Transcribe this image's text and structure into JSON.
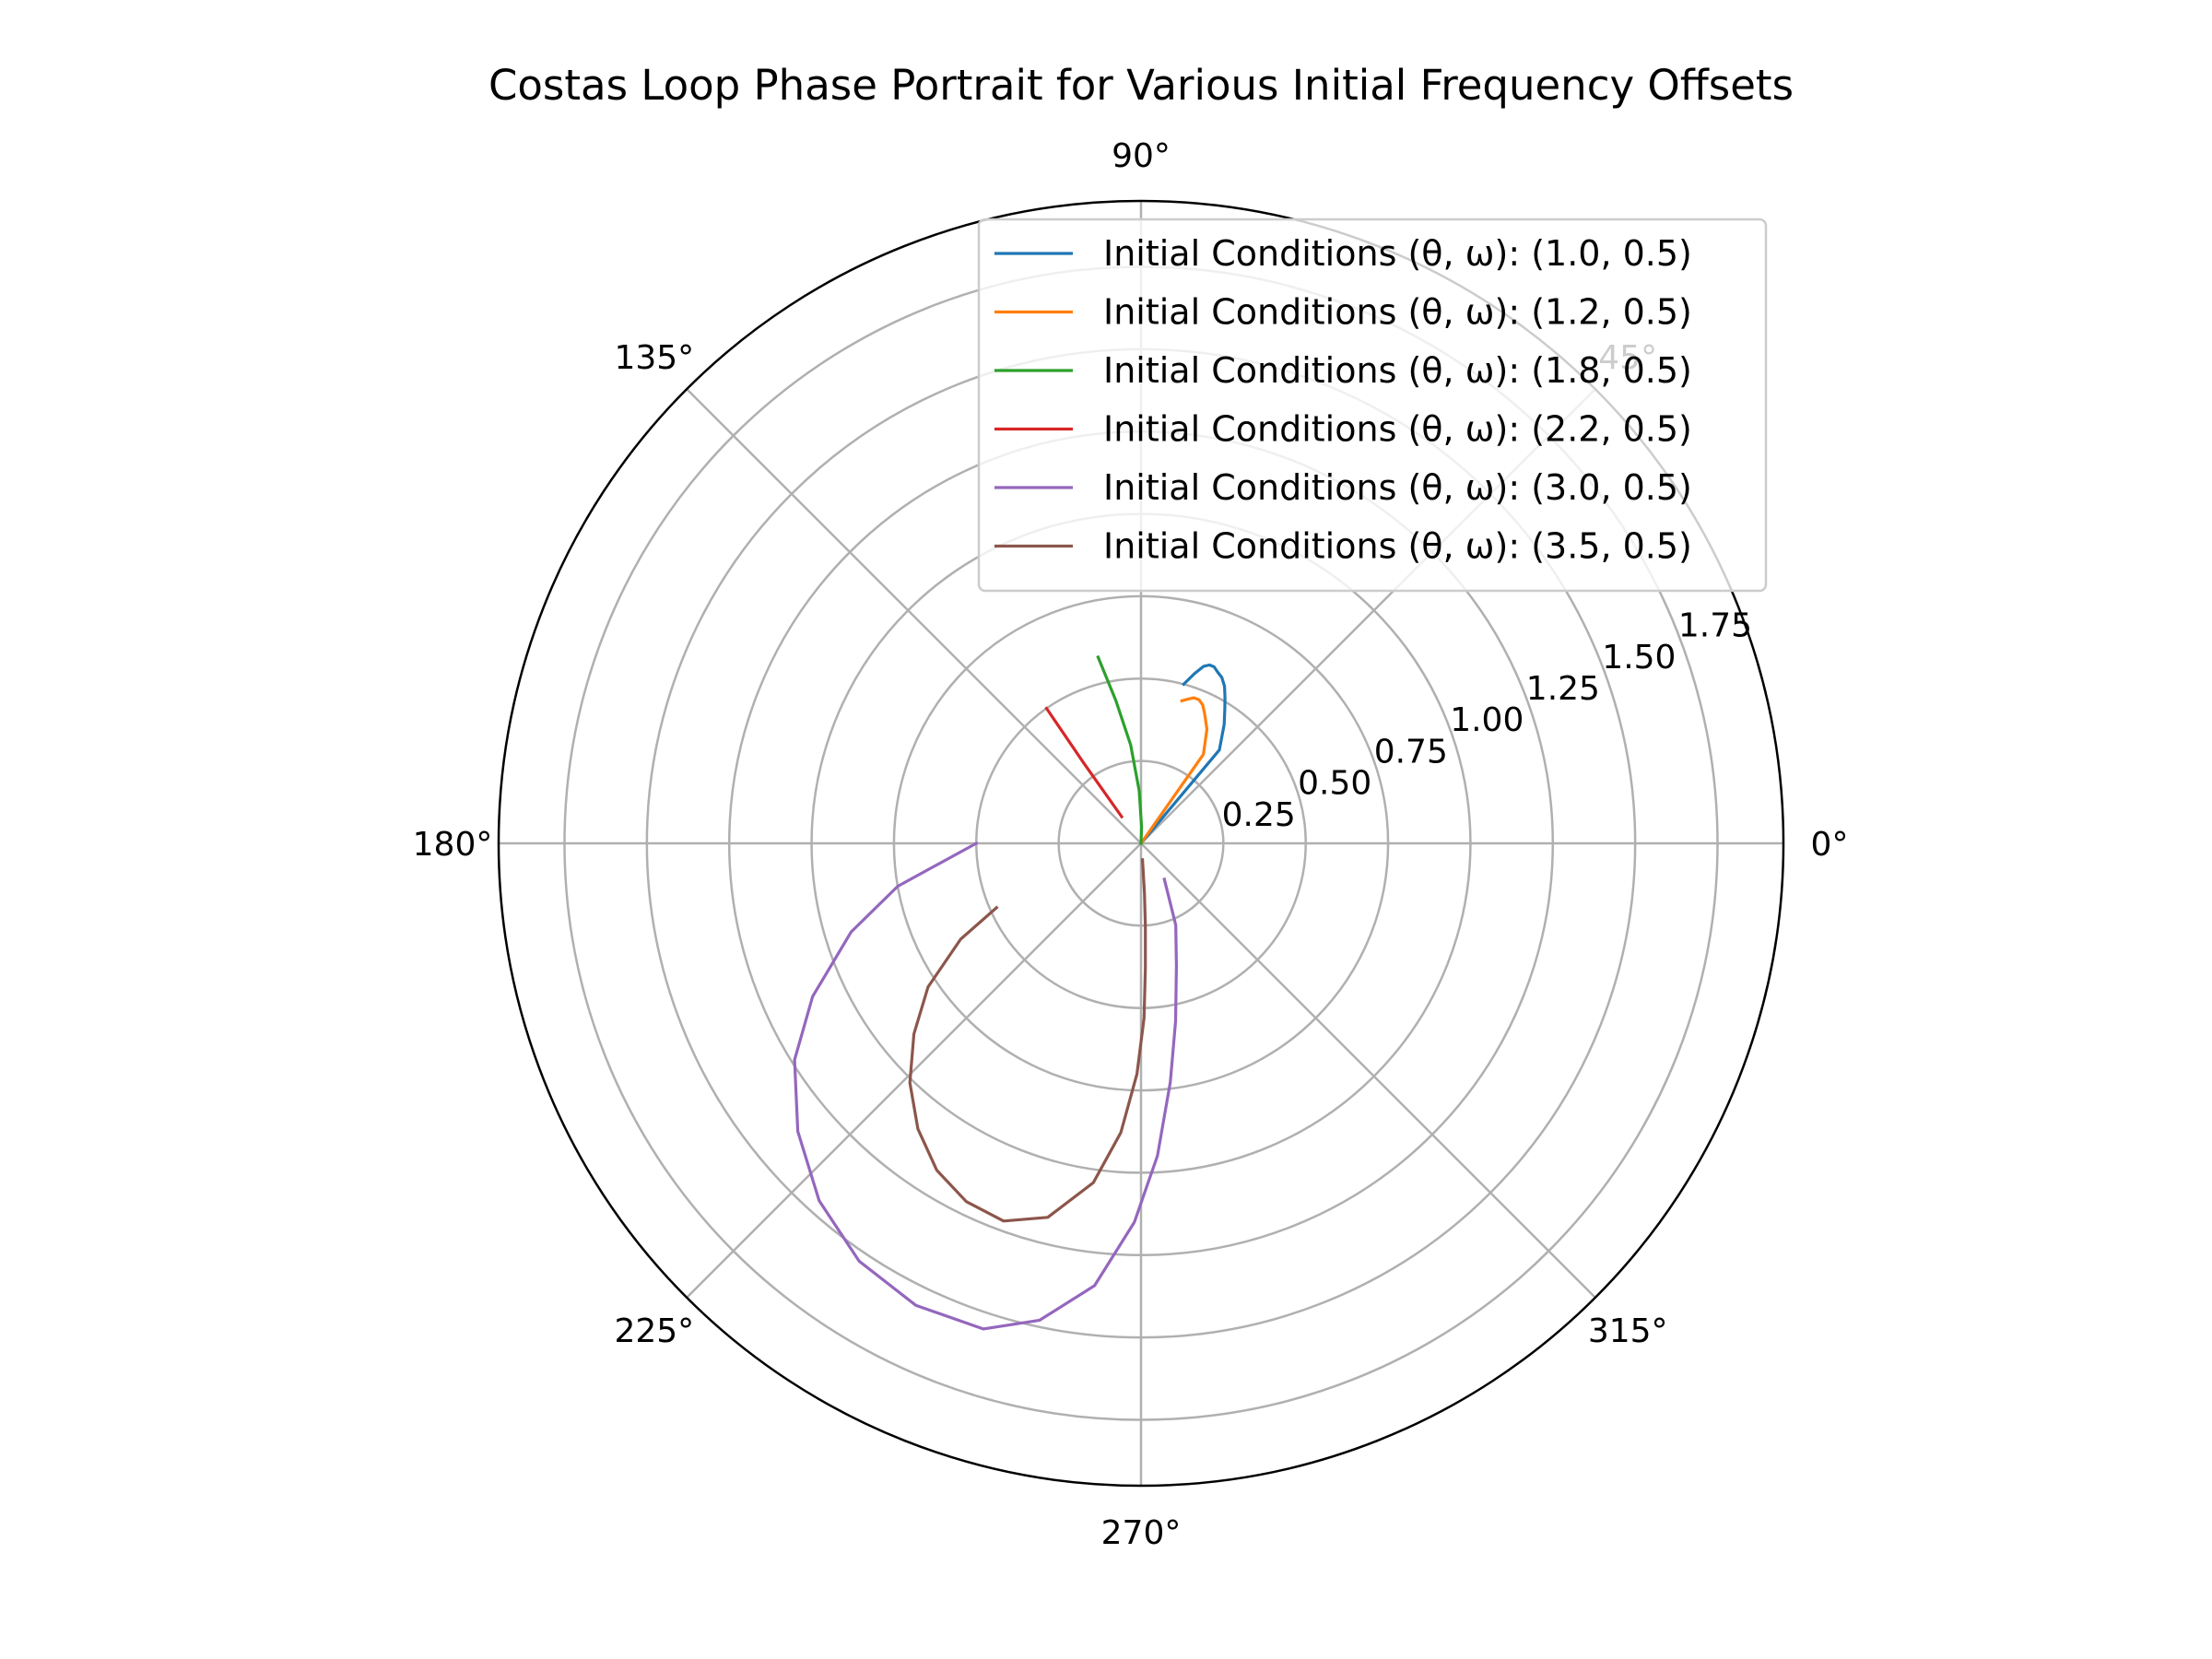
{
  "chart_data": {
    "type": "line",
    "projection": "polar",
    "title": "Costas Loop Phase Portrait for Various Initial Frequency Offsets",
    "angle_ticks": [
      "0°",
      "45°",
      "90°",
      "135°",
      "180°",
      "225°",
      "270°",
      "315°"
    ],
    "angle_tick_values_deg": [
      0,
      45,
      90,
      135,
      180,
      225,
      270,
      315
    ],
    "radial_ticks": [
      "0.25",
      "0.50",
      "0.75",
      "1.00",
      "1.25",
      "1.50",
      "1.75"
    ],
    "radial_tick_values": [
      0.25,
      0.5,
      0.75,
      1.0,
      1.25,
      1.5,
      1.75
    ],
    "rlim": [
      0,
      1.95
    ],
    "radial_label_angle_deg": 22.5,
    "grid": true,
    "legend_position": "upper right",
    "series": [
      {
        "name": "Initial Conditions (θ, ω): (1.0, 0.5)",
        "color": "#1f77b4",
        "theta_deg": [
          0,
          50,
          55,
          58,
          60,
          62,
          64,
          66,
          67.5,
          69,
          70.5,
          72.5,
          75
        ],
        "r": [
          0,
          0.37,
          0.44,
          0.48,
          0.51,
          0.54,
          0.56,
          0.57,
          0.58,
          0.58,
          0.57,
          0.54,
          0.5
        ]
      },
      {
        "name": "Initial Conditions (θ, ω): (1.2, 0.5)",
        "color": "#ff7f0e",
        "theta_deg": [
          0,
          55,
          60,
          64,
          66,
          68,
          70,
          72,
          74
        ],
        "r": [
          0,
          0.33,
          0.4,
          0.44,
          0.46,
          0.47,
          0.47,
          0.46,
          0.45
        ]
      },
      {
        "name": "Initial Conditions (θ, ω): (1.8, 0.5)",
        "color": "#2ca02c",
        "theta_deg": [
          86,
          88,
          92,
          96,
          100,
          103
        ],
        "r": [
          0.0,
          0.05,
          0.16,
          0.3,
          0.44,
          0.58
        ]
      },
      {
        "name": "Initial Conditions (θ, ω): (2.2, 0.5)",
        "color": "#d62728",
        "theta_deg": [
          126,
          125.5,
          125
        ],
        "r": [
          0.1,
          0.3,
          0.5
        ]
      },
      {
        "name": "Initial Conditions (θ, ω): (3.0, 0.5)",
        "color": "#9467bd",
        "theta_deg": [
          180,
          190,
          197,
          205,
          212,
          220,
          228,
          236,
          244,
          252,
          258,
          264,
          269,
          273,
          277,
          281,
          286,
          293,
          303
        ],
        "r": [
          0.5,
          0.75,
          0.92,
          1.1,
          1.24,
          1.36,
          1.46,
          1.53,
          1.56,
          1.55,
          1.48,
          1.35,
          1.15,
          0.95,
          0.73,
          0.55,
          0.39,
          0.27,
          0.13
        ]
      },
      {
        "name": "Initial Conditions (θ, ω): (3.5, 0.5)",
        "color": "#8c564b",
        "theta_deg": [
          204,
          208,
          214,
          220,
          226,
          232,
          238,
          244,
          250,
          256,
          262,
          266,
          269,
          271,
          272,
          273,
          274,
          275
        ],
        "r": [
          0.48,
          0.62,
          0.78,
          0.9,
          1.01,
          1.1,
          1.17,
          1.21,
          1.22,
          1.17,
          1.04,
          0.88,
          0.7,
          0.53,
          0.38,
          0.25,
          0.15,
          0.05
        ]
      }
    ]
  }
}
